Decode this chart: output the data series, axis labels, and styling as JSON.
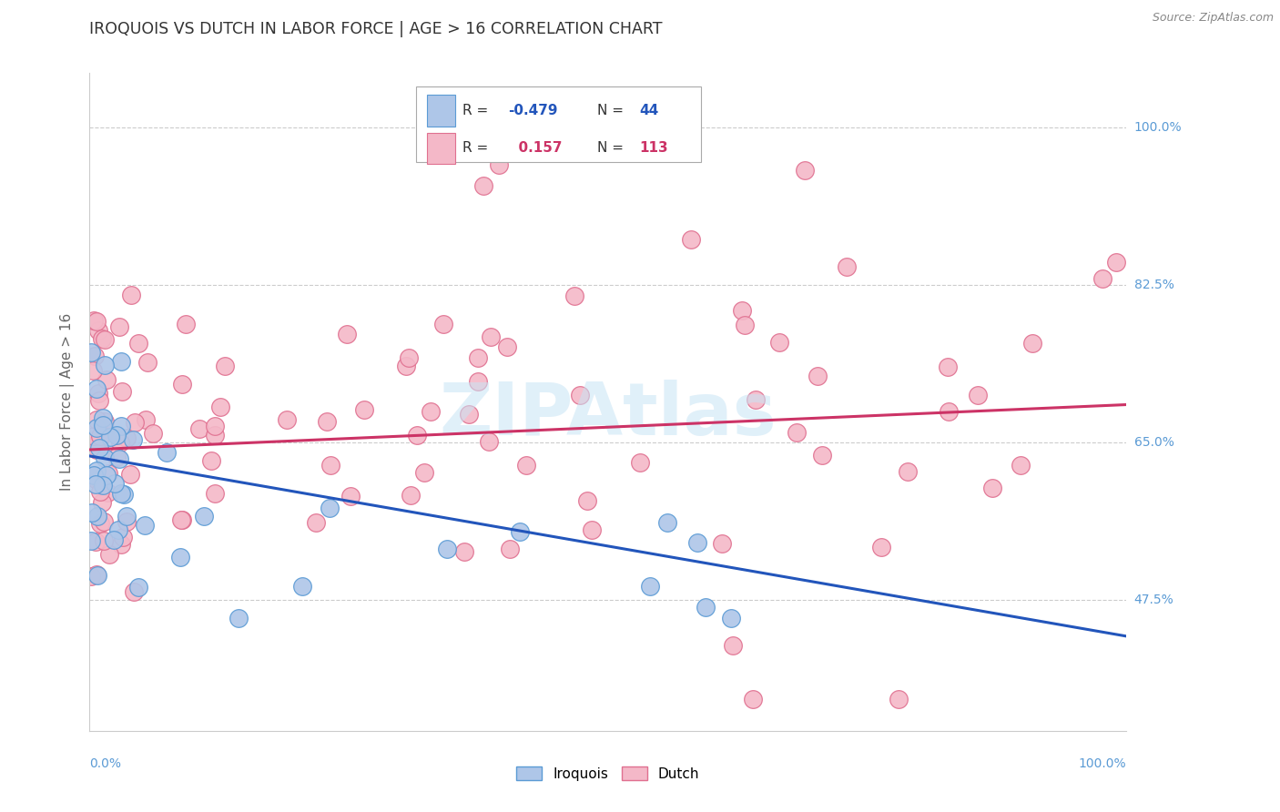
{
  "title": "IROQUOIS VS DUTCH IN LABOR FORCE | AGE > 16 CORRELATION CHART",
  "source": "Source: ZipAtlas.com",
  "ylabel": "In Labor Force | Age > 16",
  "yticks": [
    0.475,
    0.65,
    0.825,
    1.0
  ],
  "ytick_labels": [
    "47.5%",
    "65.0%",
    "82.5%",
    "100.0%"
  ],
  "xmin": 0.0,
  "xmax": 1.0,
  "ymin": 0.33,
  "ymax": 1.06,
  "iroquois_color": "#aec6e8",
  "iroquois_edge": "#5b9bd5",
  "dutch_color": "#f4b8c8",
  "dutch_edge": "#e07090",
  "blue_line_color": "#2255bb",
  "pink_line_color": "#cc3366",
  "watermark": "ZIPAtlas",
  "iroquois_R": -0.479,
  "iroquois_N": 44,
  "dutch_R": 0.157,
  "dutch_N": 113,
  "blue_line_start_y": 0.635,
  "blue_line_end_y": 0.435,
  "pink_line_start_y": 0.642,
  "pink_line_end_y": 0.692,
  "background_color": "#ffffff",
  "grid_color": "#cccccc",
  "title_color": "#333333",
  "right_tick_color": "#5b9bd5",
  "ylabel_color": "#666666",
  "legend_R_color": "#333333",
  "legend_blue_val_color": "#2255bb",
  "legend_pink_val_color": "#cc3366"
}
